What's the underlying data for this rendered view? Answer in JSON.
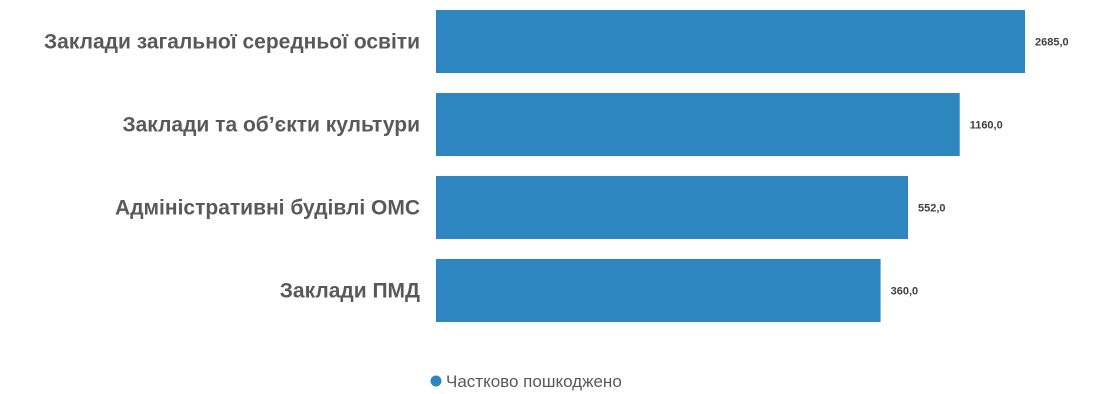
{
  "chart_data": {
    "type": "bar",
    "orientation": "horizontal",
    "categories": [
      "Заклади загальної середньої освіти",
      "Заклади та об’єкти культури",
      "Адміністративні будівлі ОМС",
      "Заклади ПМД"
    ],
    "series": [
      {
        "name": "Частково пошкоджено",
        "values": [
          2685.0,
          1160.0,
          552.0,
          360.0
        ],
        "value_labels": [
          "2685,0",
          "1160,0",
          "552,0",
          "360,0"
        ],
        "color": "#2E86C1"
      }
    ],
    "axis_scale": "non-linear",
    "legend_position": "bottom-center",
    "grid": false
  }
}
